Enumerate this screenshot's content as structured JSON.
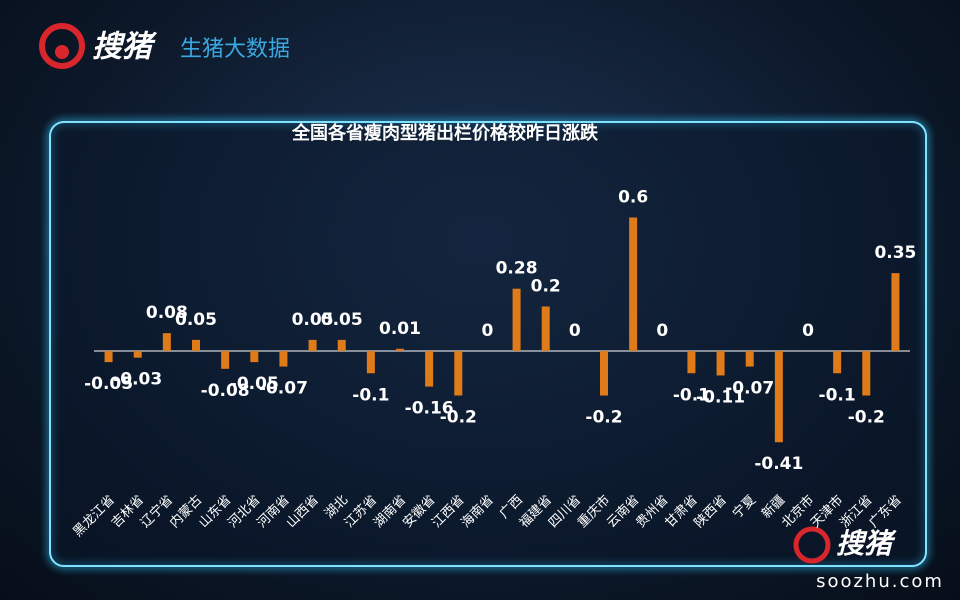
{
  "brand": {
    "logo_text": "搜猪",
    "tagline": "生猪大数据",
    "watermark_text": "搜猪",
    "watermark_url": "soozhu.com"
  },
  "chart_data": {
    "type": "bar",
    "title": "全国各省瘦肉型猪出栏价格较昨日涨跌",
    "categories": [
      "黑龙江省",
      "吉林省",
      "辽宁省",
      "内蒙古",
      "山东省",
      "河北省",
      "河南省",
      "山西省",
      "湖北",
      "江苏省",
      "湖南省",
      "安徽省",
      "江西省",
      "海南省",
      "广西",
      "福建省",
      "四川省",
      "重庆市",
      "云南省",
      "贵州省",
      "甘肃省",
      "陕西省",
      "宁夏",
      "新疆",
      "北京市",
      "天津市",
      "浙江省",
      "广东省"
    ],
    "values": [
      -0.05,
      -0.03,
      0.08,
      0.05,
      -0.08,
      -0.05,
      -0.07,
      0.05,
      0.05,
      -0.1,
      0.01,
      -0.16,
      -0.2,
      0,
      0.28,
      0.2,
      0,
      -0.2,
      0.6,
      0,
      -0.1,
      -0.11,
      -0.07,
      -0.41,
      0,
      -0.1,
      -0.2,
      0.35
    ],
    "color": "#e07b1a",
    "ylim": [
      -0.8,
      0.8
    ]
  }
}
